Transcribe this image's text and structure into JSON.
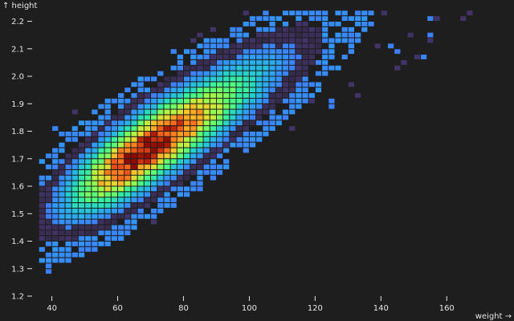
{
  "chart_data": {
    "type": "heatmap",
    "xlabel": "weight →",
    "ylabel": "↑ height",
    "xlim": [
      34,
      178
    ],
    "ylim": [
      1.2,
      2.26
    ],
    "x_ticks": [
      "40",
      "60",
      "80",
      "100",
      "120",
      "140",
      "160"
    ],
    "y_ticks": [
      "1.2",
      "1.3",
      "1.4",
      "1.5",
      "1.6",
      "1.7",
      "1.8",
      "1.9",
      "2.0",
      "2.1",
      "2.2"
    ],
    "bin_width_x": 2,
    "bin_height_y": 0.02,
    "color_scale": "turbo",
    "background_color": "#1e1e1e",
    "density_model": {
      "ridge_slope": 0.0075,
      "ridge_intercept": 1.22,
      "peak_weight": 67,
      "weight_spread_low": 12,
      "weight_spread_high": 20,
      "height_spread": 0.075,
      "sparse_weight_max": 140
    },
    "grid": false,
    "legend": "none"
  }
}
